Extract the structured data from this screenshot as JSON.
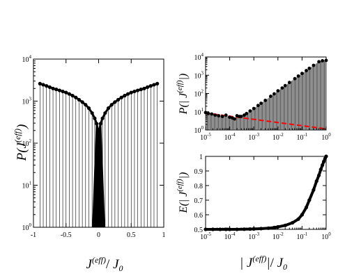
{
  "chart_data": [
    {
      "panel": "left",
      "type": "scatter",
      "style": "points on vertical drop lines (stems) to the axis floor",
      "x_tick_labels": [
        "-1",
        "-0.5",
        "0",
        "0.5",
        "1"
      ],
      "y_tick_labels": [
        [
          "10",
          "0"
        ],
        [
          "10",
          "1"
        ],
        [
          "10",
          "2"
        ],
        [
          "10",
          "3"
        ],
        [
          "10",
          "4"
        ]
      ],
      "xlabel": {
        "main": "J",
        "sup": "(eff)",
        "slash": "/",
        "denom": "J",
        "denom_sub": "0"
      },
      "ylabel": {
        "main": "P(J",
        "sup": "(eff)",
        "close": ")"
      },
      "xlim": [
        -1,
        1
      ],
      "ylim": [
        1,
        10000
      ],
      "yscale": "log",
      "series": [
        {
          "marker": "filled circle",
          "color": "#000000",
          "x": [
            -0.9,
            -0.85,
            -0.8,
            -0.75,
            -0.7,
            -0.65,
            -0.6,
            -0.55,
            -0.5,
            -0.45,
            -0.4,
            -0.35,
            -0.3,
            -0.25,
            -0.2,
            -0.15,
            -0.1,
            -0.06,
            -0.03,
            -0.01,
            0.0,
            0.01,
            0.03,
            0.06,
            0.1,
            0.15,
            0.2,
            0.25,
            0.3,
            0.35,
            0.4,
            0.45,
            0.5,
            0.55,
            0.6,
            0.65,
            0.7,
            0.75,
            0.8,
            0.85,
            0.9
          ],
          "y": [
            2600,
            2450,
            2300,
            2150,
            2000,
            1900,
            1800,
            1700,
            1600,
            1480,
            1350,
            1220,
            1080,
            950,
            820,
            680,
            520,
            390,
            290,
            200,
            140,
            200,
            290,
            390,
            520,
            680,
            820,
            950,
            1080,
            1220,
            1350,
            1480,
            1600,
            1700,
            1800,
            1900,
            2000,
            2150,
            2300,
            2450,
            2600
          ]
        }
      ]
    },
    {
      "panel": "top-right",
      "type": "scatter",
      "style": "points on vertical drop lines with a dashed fit line",
      "x_tick_labels": [
        [
          "10",
          "-5"
        ],
        [
          "10",
          "-4"
        ],
        [
          "10",
          "-3"
        ],
        [
          "10",
          "-2"
        ],
        [
          "10",
          "-1"
        ],
        [
          "10",
          "0"
        ]
      ],
      "y_tick_labels": [
        [
          "10",
          "0"
        ],
        [
          "10",
          "1"
        ],
        [
          "10",
          "2"
        ],
        [
          "10",
          "3"
        ],
        [
          "10",
          "4"
        ]
      ],
      "ylabel": {
        "main": "P(| J",
        "sup": "(eff)",
        "close": "|)"
      },
      "xscale": "log",
      "yscale": "log",
      "xlim": [
        1e-05,
        1
      ],
      "ylim": [
        1,
        10000
      ],
      "series": [
        {
          "marker": "filled circle",
          "color": "#000000",
          "x": [
            1e-05,
            1.3e-05,
            1.8e-05,
            2.5e-05,
            3.5e-05,
            5e-05,
            7e-05,
            0.0001,
            0.00013,
            0.00016,
            0.0002,
            0.00025,
            0.0003,
            0.0004,
            0.0005,
            0.0007,
            0.001,
            0.0015,
            0.002,
            0.003,
            0.005,
            0.007,
            0.01,
            0.015,
            0.02,
            0.03,
            0.05,
            0.07,
            0.1,
            0.15,
            0.2,
            0.3,
            0.5,
            0.7,
            1.0
          ],
          "y": [
            9,
            8,
            7.5,
            6.5,
            6,
            5.5,
            6.5,
            5,
            4.5,
            4,
            6,
            5.5,
            5.5,
            6.5,
            8,
            11,
            15,
            22,
            29,
            42,
            70,
            95,
            140,
            200,
            270,
            400,
            650,
            900,
            1250,
            1800,
            2400,
            3500,
            5500,
            6200,
            6500
          ]
        },
        {
          "name": "fit",
          "type": "line",
          "dash": "dashed",
          "color": "#ff0000",
          "x": [
            1e-05,
            1
          ],
          "y": [
            8.5,
            1.15
          ]
        }
      ]
    },
    {
      "panel": "bottom-right",
      "type": "scatter",
      "x_tick_labels": [
        [
          "10",
          "-5"
        ],
        [
          "10",
          "-4"
        ],
        [
          "10",
          "-3"
        ],
        [
          "10",
          "-2"
        ],
        [
          "10",
          "-1"
        ],
        [
          "10",
          "0"
        ]
      ],
      "y_tick_labels": [
        "0.5",
        "0.6",
        "0.7",
        "0.8",
        "0.9",
        "1"
      ],
      "xlabel": {
        "bar1": "| J",
        "sup": "(eff)",
        "bar2": "|",
        "slash": "/",
        "denom": "J",
        "denom_sub": "0"
      },
      "ylabel": {
        "main": "E(| J",
        "sup": "(eff)",
        "close": "|)"
      },
      "xscale": "log",
      "xlim": [
        1e-05,
        1
      ],
      "ylim": [
        0.5,
        1
      ],
      "series": [
        {
          "marker": "filled circle",
          "color": "#000000",
          "x": [
            1e-05,
            2e-05,
            4e-05,
            7e-05,
            0.0001,
            0.0002,
            0.0004,
            0.0007,
            0.001,
            0.002,
            0.004,
            0.007,
            0.01,
            0.02,
            0.04,
            0.07,
            0.1,
            0.15,
            0.2,
            0.3,
            0.4,
            0.5,
            0.6,
            0.7,
            0.8,
            0.9,
            1.0
          ],
          "y": [
            0.5,
            0.5,
            0.5,
            0.5,
            0.5,
            0.5,
            0.501,
            0.502,
            0.503,
            0.505,
            0.508,
            0.512,
            0.517,
            0.527,
            0.545,
            0.57,
            0.6,
            0.65,
            0.7,
            0.77,
            0.83,
            0.87,
            0.91,
            0.94,
            0.965,
            0.985,
            1.0
          ]
        }
      ]
    }
  ]
}
